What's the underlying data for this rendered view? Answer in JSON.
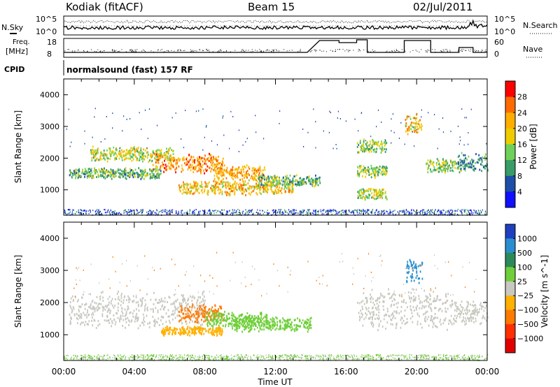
{
  "header": {
    "station": "Kodiak (fitACF)",
    "beam": "Beam 15",
    "date": "02/Jul/2011"
  },
  "summary_labels": {
    "nsky": "N.Sky",
    "nsearch": "N.Search",
    "freq_line1": "Freq.",
    "freq_line2": "[MHz]",
    "nave": "Nave",
    "cpid": "CPID",
    "cpid_value": "normalsound (fast) 157 RF",
    "noise_ticks": [
      "10^5",
      "10^0"
    ],
    "freq_ticks": [
      "18",
      "8"
    ],
    "nave_ticks": [
      "60",
      "0"
    ]
  },
  "chart_data": [
    {
      "type": "heatmap",
      "panel": "power",
      "ylabel": "Slant Range [km]",
      "xlabel": "",
      "ylim": [
        200,
        4500
      ],
      "yticks": [
        1000,
        2000,
        3000,
        4000
      ],
      "xlim_hours": [
        0,
        24
      ],
      "colorbar_label": "Power [dB]",
      "colorbar_ticks": [
        "28",
        "24",
        "20",
        "16",
        "12",
        "8",
        "4"
      ],
      "colorbar_colors": [
        "#ff0000",
        "#ff6a00",
        "#ffae00",
        "#eecc00",
        "#6fd15a",
        "#3a9c66",
        "#1e4fa8",
        "#1010ff"
      ],
      "bands": [
        {
          "t0": 0.3,
          "t1": 5.5,
          "r_center": 1550,
          "r_width": 180,
          "value": 10
        },
        {
          "t0": 1.5,
          "t1": 6.2,
          "r_center": 2150,
          "r_width": 250,
          "value": 14
        },
        {
          "t0": 5.0,
          "t1": 9.0,
          "r_center": 1850,
          "r_width": 350,
          "value": 22
        },
        {
          "t0": 8.5,
          "t1": 11.5,
          "r_center": 1550,
          "r_width": 300,
          "value": 20
        },
        {
          "t0": 6.5,
          "t1": 13.0,
          "r_center": 1100,
          "r_width": 250,
          "value": 18
        },
        {
          "t0": 11.0,
          "t1": 14.5,
          "r_center": 1300,
          "r_width": 200,
          "value": 10
        },
        {
          "t0": 16.6,
          "t1": 18.3,
          "r_center": 2400,
          "r_width": 250,
          "value": 12
        },
        {
          "t0": 16.6,
          "t1": 18.3,
          "r_center": 1600,
          "r_width": 220,
          "value": 12
        },
        {
          "t0": 16.6,
          "t1": 18.3,
          "r_center": 900,
          "r_width": 200,
          "value": 14
        },
        {
          "t0": 19.3,
          "t1": 20.3,
          "r_center": 3100,
          "r_width": 400,
          "value": 18
        },
        {
          "t0": 20.5,
          "t1": 22.5,
          "r_center": 1800,
          "r_width": 250,
          "value": 12
        },
        {
          "t0": 22.3,
          "t1": 24.0,
          "r_center": 1900,
          "r_width": 300,
          "value": 8
        }
      ]
    },
    {
      "type": "heatmap",
      "panel": "velocity",
      "ylabel": "Slant Range [km]",
      "xlabel": "Time UT",
      "ylim": [
        200,
        4500
      ],
      "yticks": [
        1000,
        2000,
        3000,
        4000
      ],
      "xlim_hours": [
        0,
        24
      ],
      "xticks": [
        "00:00",
        "04:00",
        "08:00",
        "12:00",
        "16:00",
        "20:00",
        "00:00"
      ],
      "colorbar_label": "Velocity [m s^-1]",
      "colorbar_ticks": [
        "1000",
        "500",
        "100",
        "25",
        "−25",
        "−100",
        "−500",
        "−1000"
      ],
      "colorbar_colors": [
        "#1f3fbf",
        "#2a8fd0",
        "#2c8a5a",
        "#6fcf3a",
        "#c8c8c0",
        "#ffb000",
        "#ff7a00",
        "#ff3000",
        "#e00000"
      ],
      "bands": [
        {
          "t0": 0.3,
          "t1": 8.0,
          "r_center": 1800,
          "r_width": 600,
          "value": "ground"
        },
        {
          "t0": 6.5,
          "t1": 9.0,
          "r_center": 1700,
          "r_width": 300,
          "value": -500
        },
        {
          "t0": 8.0,
          "t1": 11.5,
          "r_center": 1500,
          "r_width": 300,
          "value": 100
        },
        {
          "t0": 9.5,
          "t1": 14.0,
          "r_center": 1350,
          "r_width": 250,
          "value": 25
        },
        {
          "t0": 5.5,
          "t1": 9.0,
          "r_center": 1150,
          "r_width": 150,
          "value": -100
        },
        {
          "t0": 16.6,
          "t1": 22.0,
          "r_center": 1800,
          "r_width": 700,
          "value": "ground"
        },
        {
          "t0": 19.4,
          "t1": 20.3,
          "r_center": 3000,
          "r_width": 400,
          "value": 500
        },
        {
          "t0": 22.0,
          "t1": 24.0,
          "r_center": 1700,
          "r_width": 400,
          "value": "ground"
        }
      ]
    }
  ]
}
